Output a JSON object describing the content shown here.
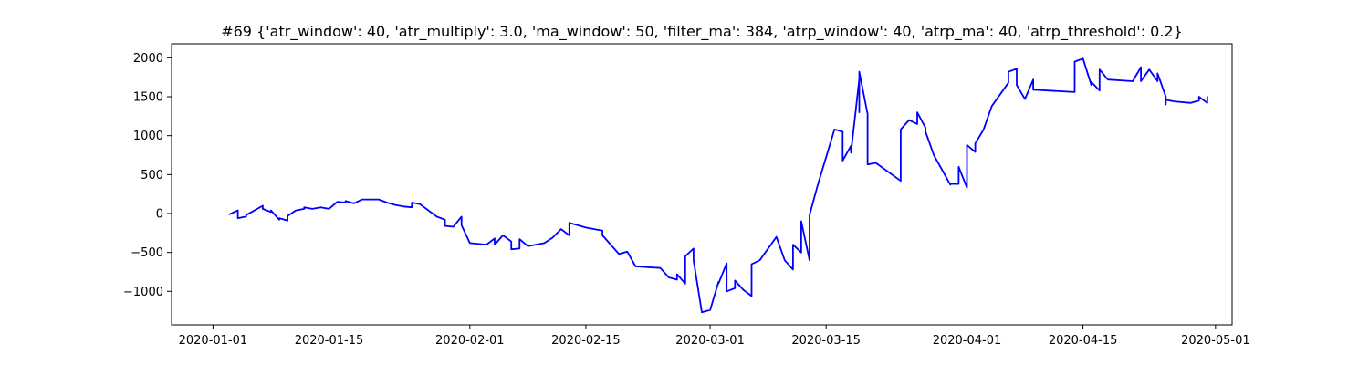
{
  "chart_data": {
    "type": "line",
    "title": "#69 {'atr_window': 40, 'atr_multiply': 3.0, 'ma_window': 50, 'filter_ma': 384, 'atrp_window': 40, 'atrp_ma': 40, 'atrp_threshold': 0.2}",
    "xlabel": "",
    "ylabel": "",
    "x_type": "date",
    "xlim": [
      "2019-12-27",
      "2020-05-03"
    ],
    "ylim": [
      -1430,
      2180
    ],
    "x_ticks": [
      "2020-01-01",
      "2020-01-15",
      "2020-02-01",
      "2020-02-15",
      "2020-03-01",
      "2020-03-15",
      "2020-04-01",
      "2020-04-15",
      "2020-05-01"
    ],
    "y_ticks": [
      -1000,
      -500,
      0,
      500,
      1000,
      1500,
      2000
    ],
    "grid": false,
    "line_color": "#0000ff",
    "series": [
      {
        "x": [
          "2020-01-03",
          "2020-01-03",
          "2020-01-04",
          "2020-01-04",
          "2020-01-05",
          "2020-01-05",
          "2020-01-07",
          "2020-01-07",
          "2020-01-08",
          "2020-01-08",
          "2020-01-09",
          "2020-01-09",
          "2020-01-10",
          "2020-01-10",
          "2020-01-11",
          "2020-01-12",
          "2020-01-12",
          "2020-01-13",
          "2020-01-14",
          "2020-01-15",
          "2020-01-16",
          "2020-01-17",
          "2020-01-17",
          "2020-01-18",
          "2020-01-19",
          "2020-01-21",
          "2020-01-22",
          "2020-01-23",
          "2020-01-24",
          "2020-01-25",
          "2020-01-25",
          "2020-01-26",
          "2020-01-28",
          "2020-01-29",
          "2020-01-29",
          "2020-01-30",
          "2020-01-31",
          "2020-01-31",
          "2020-02-01",
          "2020-02-03",
          "2020-02-04",
          "2020-02-04",
          "2020-02-05",
          "2020-02-06",
          "2020-02-06",
          "2020-02-07",
          "2020-02-07",
          "2020-02-08",
          "2020-02-10",
          "2020-02-11",
          "2020-02-12",
          "2020-02-13",
          "2020-02-13",
          "2020-02-15",
          "2020-02-16",
          "2020-02-17",
          "2020-02-17",
          "2020-02-18",
          "2020-02-19",
          "2020-02-20",
          "2020-02-21",
          "2020-02-21",
          "2020-02-24",
          "2020-02-25",
          "2020-02-26",
          "2020-02-26",
          "2020-02-27",
          "2020-02-27",
          "2020-02-28",
          "2020-02-28",
          "2020-02-29",
          "2020-03-01",
          "2020-03-02",
          "2020-03-02",
          "2020-03-03",
          "2020-03-03",
          "2020-03-04",
          "2020-03-04",
          "2020-03-05",
          "2020-03-06",
          "2020-03-06",
          "2020-03-07",
          "2020-03-09",
          "2020-03-10",
          "2020-03-11",
          "2020-03-11",
          "2020-03-12",
          "2020-03-12",
          "2020-03-13",
          "2020-03-13",
          "2020-03-14",
          "2020-03-16",
          "2020-03-17",
          "2020-03-17",
          "2020-03-18",
          "2020-03-18",
          "2020-03-19",
          "2020-03-19",
          "2020-03-19",
          "2020-03-20",
          "2020-03-20",
          "2020-03-21",
          "2020-03-24",
          "2020-03-24",
          "2020-03-25",
          "2020-03-26",
          "2020-03-26",
          "2020-03-27",
          "2020-03-27",
          "2020-03-28",
          "2020-03-30",
          "2020-03-30",
          "2020-03-31",
          "2020-03-31",
          "2020-04-01",
          "2020-04-01",
          "2020-04-02",
          "2020-04-02",
          "2020-04-03",
          "2020-04-04",
          "2020-04-06",
          "2020-04-06",
          "2020-04-07",
          "2020-04-07",
          "2020-04-08",
          "2020-04-09",
          "2020-04-09",
          "2020-04-14",
          "2020-04-14",
          "2020-04-15",
          "2020-04-16",
          "2020-04-16",
          "2020-04-17",
          "2020-04-17",
          "2020-04-18",
          "2020-04-21",
          "2020-04-21",
          "2020-04-22",
          "2020-04-22",
          "2020-04-23",
          "2020-04-24",
          "2020-04-24",
          "2020-04-25",
          "2020-04-25",
          "2020-04-25",
          "2020-04-26",
          "2020-04-28",
          "2020-04-29",
          "2020-04-29",
          "2020-04-30",
          "2020-04-30",
          "2020-04-30"
        ],
        "y": [
          0,
          -10,
          40,
          -60,
          -40,
          -20,
          100,
          60,
          20,
          40,
          -80,
          -60,
          -90,
          -30,
          40,
          60,
          80,
          60,
          80,
          60,
          150,
          140,
          160,
          130,
          180,
          180,
          140,
          110,
          90,
          80,
          140,
          120,
          -40,
          -80,
          -160,
          -170,
          -40,
          -150,
          -380,
          -400,
          -320,
          -400,
          -280,
          -360,
          -460,
          -450,
          -330,
          -420,
          -380,
          -310,
          -200,
          -280,
          -120,
          -180,
          -200,
          -220,
          -280,
          -400,
          -520,
          -490,
          -680,
          -680,
          -700,
          -820,
          -850,
          -780,
          -900,
          -550,
          -450,
          -600,
          -1270,
          -1240,
          -880,
          -900,
          -640,
          -1000,
          -960,
          -860,
          -980,
          -1060,
          -650,
          -600,
          -300,
          -600,
          -720,
          -400,
          -500,
          -100,
          -600,
          -20,
          370,
          1080,
          1050,
          680,
          870,
          780,
          1730,
          1300,
          1820,
          1280,
          630,
          650,
          420,
          1080,
          1200,
          1150,
          1300,
          1100,
          1050,
          750,
          370,
          380,
          380,
          600,
          330,
          880,
          790,
          900,
          1080,
          1380,
          1680,
          1820,
          1860,
          1650,
          1470,
          1720,
          1590,
          1560,
          1950,
          1990,
          1650,
          1690,
          1580,
          1850,
          1720,
          1700,
          1700,
          1880,
          1700,
          1850,
          1700,
          1800,
          1500,
          1400,
          1460,
          1440,
          1420,
          1450,
          1500,
          1420,
          1500,
          1480
        ]
      }
    ]
  }
}
